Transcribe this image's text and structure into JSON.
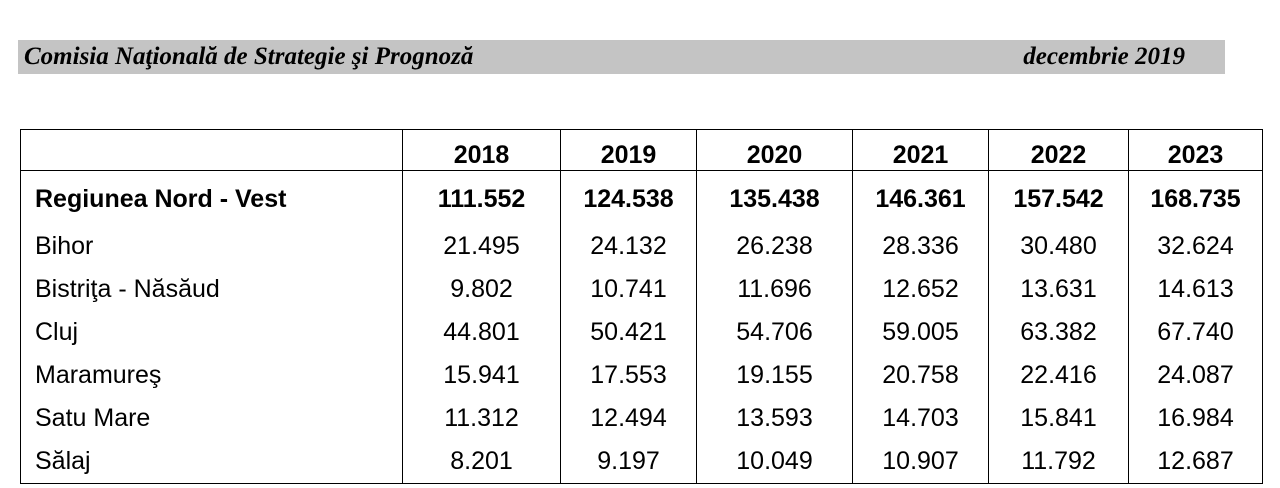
{
  "header": {
    "org": "Comisia Naţională de Strategie şi Prognoză",
    "date": "decembrie 2019"
  },
  "table": {
    "columns": [
      "2018",
      "2019",
      "2020",
      "2021",
      "2022",
      "2023"
    ],
    "rows": [
      {
        "name": "Regiunea Nord - Vest",
        "values": [
          "111.552",
          "124.538",
          "135.438",
          "146.361",
          "157.542",
          "168.735"
        ]
      },
      {
        "name": "Bihor",
        "values": [
          "21.495",
          "24.132",
          "26.238",
          "28.336",
          "30.480",
          "32.624"
        ]
      },
      {
        "name": "Bistriţa - Năsăud",
        "values": [
          "9.802",
          "10.741",
          "11.696",
          "12.652",
          "13.631",
          "14.613"
        ]
      },
      {
        "name": "Cluj",
        "values": [
          "44.801",
          "50.421",
          "54.706",
          "59.005",
          "63.382",
          "67.740"
        ]
      },
      {
        "name": "Maramureş",
        "values": [
          "15.941",
          "17.553",
          "19.155",
          "20.758",
          "22.416",
          "24.087"
        ]
      },
      {
        "name": "Satu Mare",
        "values": [
          "11.312",
          "12.494",
          "13.593",
          "14.703",
          "15.841",
          "16.984"
        ]
      },
      {
        "name": "Sălaj",
        "values": [
          "8.201",
          "9.197",
          "10.049",
          "10.907",
          "11.792",
          "12.687"
        ]
      }
    ]
  }
}
